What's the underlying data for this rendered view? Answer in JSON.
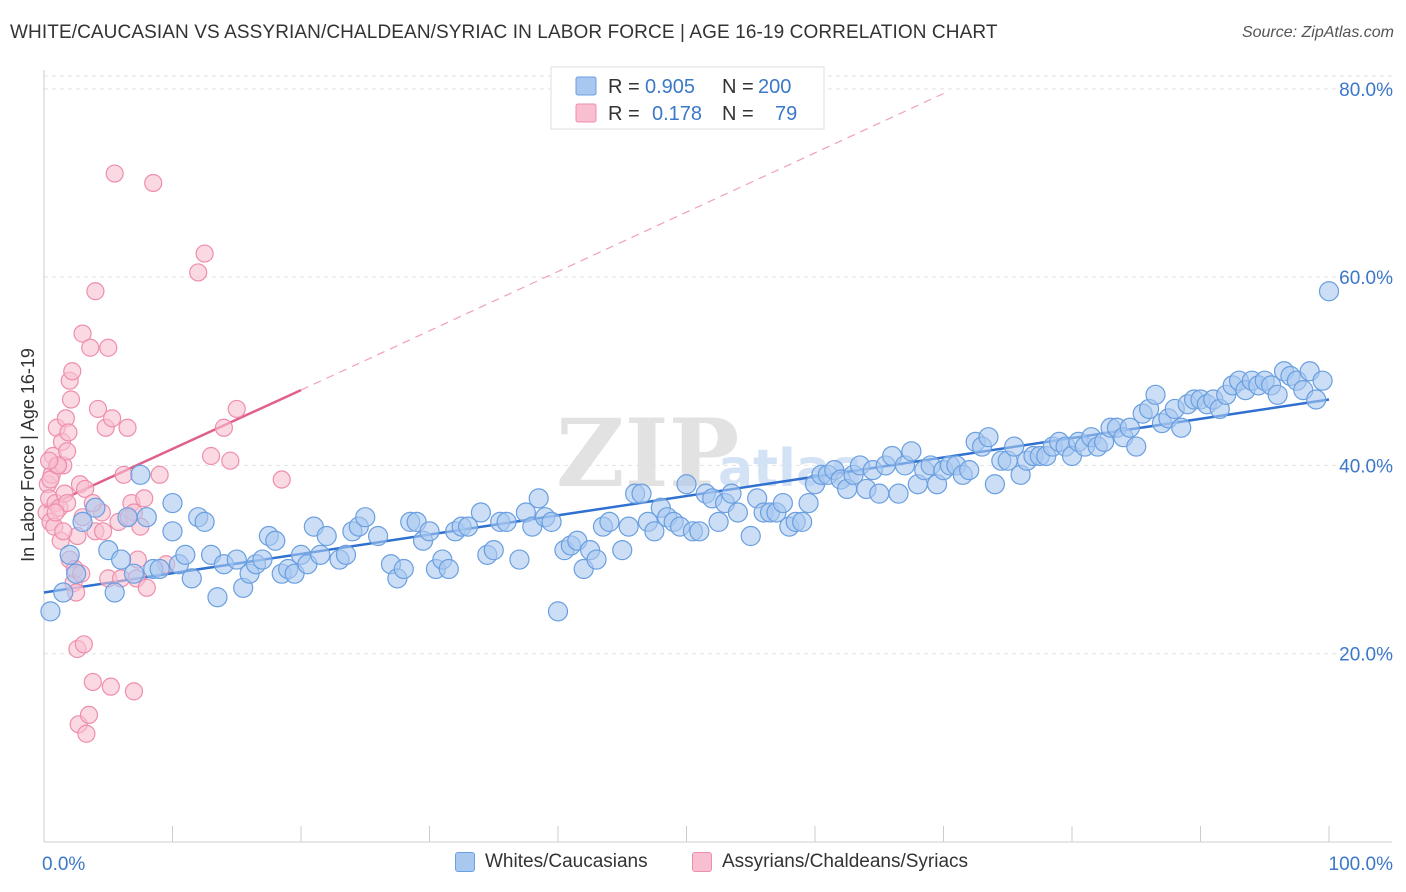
{
  "chart_data": {
    "type": "scatter",
    "title": "WHITE/CAUCASIAN VS ASSYRIAN/CHALDEAN/SYRIAC IN LABOR FORCE | AGE 16-19 CORRELATION CHART",
    "source": "Source: ZipAtlas.com",
    "xlabel": "",
    "ylabel": "In Labor Force | Age 16-19",
    "xlim": [
      0,
      100
    ],
    "ylim": [
      0,
      82
    ],
    "x_tick_labels": [
      {
        "value": 0,
        "label": "0.0%"
      },
      {
        "value": 100,
        "label": "100.0%"
      }
    ],
    "y_tick_labels": [
      {
        "value": 20,
        "label": "20.0%"
      },
      {
        "value": 40,
        "label": "40.0%"
      },
      {
        "value": 60,
        "label": "60.0%"
      },
      {
        "value": 80,
        "label": "80.0%"
      }
    ],
    "watermark": "ZIPatlas",
    "legend": {
      "rows": [
        {
          "r_label": "R =",
          "r_value": "0.905",
          "n_label": "N =",
          "n_value": "200"
        },
        {
          "r_label": "R =",
          "r_value": "0.178",
          "n_label": "N =",
          "n_value": "79"
        }
      ]
    },
    "series": [
      {
        "name": "Whites/Caucasians",
        "color": "#6a9fe0",
        "fill": "#a9c8f0",
        "line_color": "#2f70d0",
        "trend": {
          "x": [
            0,
            100
          ],
          "y": [
            26.5,
            47.0
          ]
        },
        "points": [
          [
            0.5,
            24.5
          ],
          [
            1.5,
            26.5
          ],
          [
            2,
            30.5
          ],
          [
            2.5,
            28.5
          ],
          [
            3,
            34
          ],
          [
            4,
            35.5
          ],
          [
            5,
            31
          ],
          [
            5.5,
            26.5
          ],
          [
            6,
            30
          ],
          [
            6.5,
            34.5
          ],
          [
            7,
            28.5
          ],
          [
            7.5,
            39
          ],
          [
            8,
            34.5
          ],
          [
            8.5,
            29
          ],
          [
            9,
            29
          ],
          [
            10,
            33
          ],
          [
            10,
            36
          ],
          [
            10.5,
            29.5
          ],
          [
            11,
            30.5
          ],
          [
            11.5,
            28
          ],
          [
            12,
            34.5
          ],
          [
            12.5,
            34
          ],
          [
            13,
            30.5
          ],
          [
            13.5,
            26
          ],
          [
            14,
            29.5
          ],
          [
            15,
            30
          ],
          [
            15.5,
            27
          ],
          [
            16,
            28.5
          ],
          [
            16.5,
            29.5
          ],
          [
            17,
            30
          ],
          [
            17.5,
            32.5
          ],
          [
            18,
            32
          ],
          [
            18.5,
            28.5
          ],
          [
            19,
            29
          ],
          [
            19.5,
            28.5
          ],
          [
            20,
            30.5
          ],
          [
            20.5,
            29.5
          ],
          [
            21,
            33.5
          ],
          [
            21.5,
            30.5
          ],
          [
            22,
            32.5
          ],
          [
            23,
            30
          ],
          [
            23.5,
            30.5
          ],
          [
            24,
            33
          ],
          [
            24.5,
            33.5
          ],
          [
            25,
            34.5
          ],
          [
            26,
            32.5
          ],
          [
            27,
            29.5
          ],
          [
            27.5,
            28
          ],
          [
            28,
            29
          ],
          [
            28.5,
            34
          ],
          [
            29,
            34
          ],
          [
            29.5,
            32
          ],
          [
            30,
            33
          ],
          [
            30.5,
            29
          ],
          [
            31,
            30
          ],
          [
            31.5,
            29
          ],
          [
            32,
            33
          ],
          [
            32.5,
            33.5
          ],
          [
            33,
            33.5
          ],
          [
            34,
            35
          ],
          [
            34.5,
            30.5
          ],
          [
            35,
            31
          ],
          [
            35.5,
            34
          ],
          [
            36,
            34
          ],
          [
            37,
            30
          ],
          [
            37.5,
            35
          ],
          [
            38,
            33.5
          ],
          [
            38.5,
            36.5
          ],
          [
            39,
            34.5
          ],
          [
            39.5,
            34
          ],
          [
            40,
            24.5
          ],
          [
            40.5,
            31
          ],
          [
            41,
            31.5
          ],
          [
            41.5,
            32
          ],
          [
            42,
            29
          ],
          [
            42.5,
            31
          ],
          [
            43,
            30
          ],
          [
            43.5,
            33.5
          ],
          [
            44,
            34
          ],
          [
            45,
            31
          ],
          [
            45.5,
            33.5
          ],
          [
            46,
            37
          ],
          [
            46.5,
            37
          ],
          [
            47,
            34
          ],
          [
            47.5,
            33
          ],
          [
            48,
            35.5
          ],
          [
            48.5,
            34.5
          ],
          [
            49,
            34
          ],
          [
            49.5,
            33.5
          ],
          [
            50,
            38
          ],
          [
            50.5,
            33
          ],
          [
            51,
            33
          ],
          [
            51.5,
            37
          ],
          [
            52,
            36.5
          ],
          [
            52.5,
            34
          ],
          [
            53,
            36
          ],
          [
            53.5,
            37
          ],
          [
            54,
            35
          ],
          [
            55,
            32.5
          ],
          [
            55.5,
            36.5
          ],
          [
            56,
            35
          ],
          [
            56.5,
            35
          ],
          [
            57,
            35
          ],
          [
            57.5,
            36
          ],
          [
            58,
            33.5
          ],
          [
            58.5,
            34
          ],
          [
            59,
            34
          ],
          [
            59.5,
            36
          ],
          [
            60,
            38
          ],
          [
            60.5,
            39
          ],
          [
            61,
            39
          ],
          [
            61.5,
            39.5
          ],
          [
            62,
            38.5
          ],
          [
            62.5,
            37.5
          ],
          [
            63,
            39
          ],
          [
            63.5,
            40
          ],
          [
            64,
            37.5
          ],
          [
            64.5,
            39.5
          ],
          [
            65,
            37
          ],
          [
            65.5,
            40
          ],
          [
            66,
            41
          ],
          [
            66.5,
            37
          ],
          [
            67,
            40
          ],
          [
            67.5,
            41.5
          ],
          [
            68,
            38
          ],
          [
            68.5,
            39.5
          ],
          [
            69,
            40
          ],
          [
            69.5,
            38
          ],
          [
            70,
            39.5
          ],
          [
            70.5,
            40
          ],
          [
            71,
            40
          ],
          [
            71.5,
            39
          ],
          [
            72,
            39.5
          ],
          [
            72.5,
            42.5
          ],
          [
            73,
            42
          ],
          [
            73.5,
            43
          ],
          [
            74,
            38
          ],
          [
            74.5,
            40.5
          ],
          [
            75,
            40.5
          ],
          [
            75.5,
            42
          ],
          [
            76,
            39
          ],
          [
            76.5,
            40.5
          ],
          [
            77,
            41
          ],
          [
            77.5,
            41
          ],
          [
            78,
            41
          ],
          [
            78.5,
            42
          ],
          [
            79,
            42.5
          ],
          [
            79.5,
            42
          ],
          [
            80,
            41
          ],
          [
            80.5,
            42.5
          ],
          [
            81,
            42
          ],
          [
            81.5,
            43
          ],
          [
            82,
            42
          ],
          [
            82.5,
            42.5
          ],
          [
            83,
            44
          ],
          [
            83.5,
            44
          ],
          [
            84,
            43
          ],
          [
            84.5,
            44
          ],
          [
            85,
            42
          ],
          [
            85.5,
            45.5
          ],
          [
            86,
            46
          ],
          [
            86.5,
            47.5
          ],
          [
            87,
            44.5
          ],
          [
            87.5,
            45
          ],
          [
            88,
            46
          ],
          [
            88.5,
            44
          ],
          [
            89,
            46.5
          ],
          [
            89.5,
            47
          ],
          [
            90,
            47
          ],
          [
            90.5,
            46.5
          ],
          [
            91,
            47
          ],
          [
            91.5,
            46
          ],
          [
            92,
            47.5
          ],
          [
            92.5,
            48.5
          ],
          [
            93,
            49
          ],
          [
            93.5,
            48
          ],
          [
            94,
            49
          ],
          [
            94.5,
            48.5
          ],
          [
            95,
            49
          ],
          [
            95.5,
            48.5
          ],
          [
            96,
            47.5
          ],
          [
            96.5,
            50
          ],
          [
            97,
            49.5
          ],
          [
            97.5,
            49
          ],
          [
            98,
            48
          ],
          [
            98.5,
            50
          ],
          [
            99,
            47
          ],
          [
            99.5,
            49
          ],
          [
            100,
            58.5
          ]
        ]
      },
      {
        "name": "Assyrians/Chaldeans/Syriacs",
        "color": "#ee8eac",
        "fill": "#f8bfd0",
        "line_color": "#e0608a",
        "trend": {
          "x": [
            0,
            20
          ],
          "y": [
            35.5,
            48
          ]
        },
        "trend_extension": {
          "x": [
            20,
            70
          ],
          "y": [
            48,
            79.5
          ]
        },
        "points": [
          [
            0.2,
            35
          ],
          [
            0.3,
            38
          ],
          [
            0.4,
            36.5
          ],
          [
            0.5,
            34
          ],
          [
            0.6,
            39
          ],
          [
            0.7,
            41
          ],
          [
            0.8,
            33.5
          ],
          [
            0.9,
            36
          ],
          [
            1,
            40
          ],
          [
            1,
            44
          ],
          [
            1.2,
            35.5
          ],
          [
            1.3,
            32
          ],
          [
            1.4,
            42.5
          ],
          [
            1.5,
            40
          ],
          [
            1.6,
            37
          ],
          [
            1.7,
            45
          ],
          [
            1.8,
            36
          ],
          [
            1.9,
            43.5
          ],
          [
            2,
            49
          ],
          [
            2,
            30
          ],
          [
            2.1,
            47
          ],
          [
            2.2,
            50
          ],
          [
            2.3,
            27.5
          ],
          [
            2.4,
            29
          ],
          [
            2.5,
            26.5
          ],
          [
            2.6,
            20.5
          ],
          [
            2.7,
            12.5
          ],
          [
            2.8,
            38
          ],
          [
            3,
            54
          ],
          [
            3,
            34.5
          ],
          [
            3.2,
            37.5
          ],
          [
            3.3,
            11.5
          ],
          [
            3.5,
            13.5
          ],
          [
            3.6,
            52.5
          ],
          [
            3.8,
            17
          ],
          [
            4,
            58.5
          ],
          [
            4,
            33
          ],
          [
            4.2,
            46
          ],
          [
            4.5,
            35
          ],
          [
            4.8,
            44
          ],
          [
            5,
            52.5
          ],
          [
            5,
            28
          ],
          [
            5.2,
            16.5
          ],
          [
            5.5,
            71
          ],
          [
            5.8,
            34
          ],
          [
            6,
            28
          ],
          [
            6.2,
            39
          ],
          [
            6.5,
            44
          ],
          [
            6.8,
            36
          ],
          [
            7,
            35
          ],
          [
            7,
            16
          ],
          [
            7.2,
            28
          ],
          [
            7.5,
            33.5
          ],
          [
            7.8,
            36.5
          ],
          [
            8,
            27
          ],
          [
            8.5,
            70
          ],
          [
            9,
            39
          ],
          [
            9.5,
            29.5
          ],
          [
            12,
            60.5
          ],
          [
            12.5,
            62.5
          ],
          [
            13,
            41
          ],
          [
            14,
            44
          ],
          [
            14.5,
            40.5
          ],
          [
            15,
            46
          ],
          [
            18.5,
            38.5
          ],
          [
            0.5,
            38.5
          ],
          [
            1.1,
            40
          ],
          [
            2.9,
            28.5
          ],
          [
            4.6,
            33
          ],
          [
            1.8,
            41.5
          ],
          [
            0.9,
            35
          ],
          [
            2.6,
            32.5
          ],
          [
            6.6,
            34.5
          ],
          [
            3.8,
            36
          ],
          [
            5.3,
            45
          ],
          [
            7.3,
            30
          ],
          [
            1.5,
            33
          ],
          [
            0.4,
            40.5
          ],
          [
            3.1,
            21
          ]
        ]
      }
    ]
  },
  "bottom_legend": {
    "white_label": "Whites/Caucasians",
    "assyrian_label": "Assyrians/Chaldeans/Syriacs"
  }
}
